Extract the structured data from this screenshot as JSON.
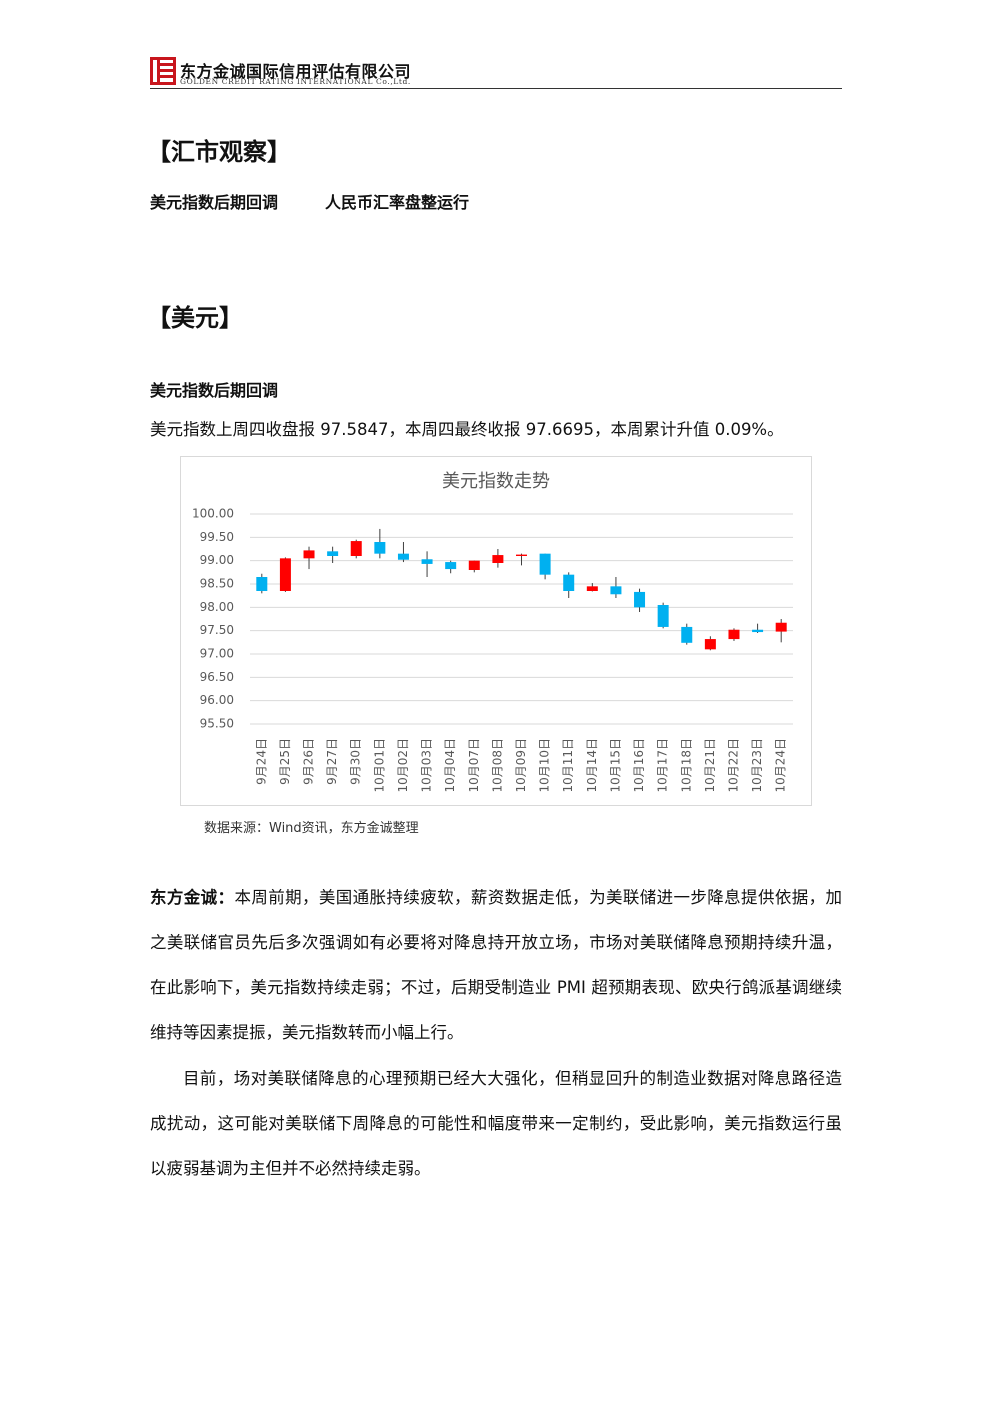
{
  "header": {
    "company": "东方金诚国际信用评估有限公司",
    "company_en": "GOLDEN CREDIT RATING INTERNATIONAL Co.,Ltd."
  },
  "section_title": "【汇市观察】",
  "headlines": [
    "美元指数后期回调",
    "人民币汇率盘整运行"
  ],
  "subsection_title": "【美元】",
  "subhead": "美元指数后期回调",
  "intro": "美元指数上周四收盘报 97.5847，本周四最终收报 97.6695，本周累计升值 0.09%。",
  "chart_data": {
    "type": "candlestick",
    "title": "美元指数走势",
    "categories": [
      "9月24日",
      "9月25日",
      "9月26日",
      "9月27日",
      "9月30日",
      "10月01日",
      "10月02日",
      "10月03日",
      "10月04日",
      "10月07日",
      "10月08日",
      "10月09日",
      "10月10日",
      "10月11日",
      "10月14日",
      "10月15日",
      "10月16日",
      "10月17日",
      "10月18日",
      "10月21日",
      "10月22日",
      "10月23日",
      "10月24日"
    ],
    "open": [
      98.65,
      98.35,
      99.05,
      99.2,
      99.1,
      99.4,
      99.15,
      99.03,
      98.97,
      98.8,
      98.95,
      99.1,
      99.15,
      98.7,
      98.35,
      98.45,
      98.33,
      98.05,
      97.58,
      97.1,
      97.32,
      97.52,
      97.48
    ],
    "high": [
      98.72,
      99.07,
      99.3,
      99.3,
      99.45,
      99.68,
      99.4,
      99.2,
      99.0,
      99.0,
      99.25,
      99.15,
      99.15,
      98.75,
      98.52,
      98.65,
      98.4,
      98.1,
      97.65,
      97.38,
      97.55,
      97.65,
      97.75
    ],
    "low": [
      98.3,
      98.33,
      98.82,
      98.95,
      99.05,
      99.05,
      98.97,
      98.65,
      98.73,
      98.75,
      98.85,
      98.9,
      98.6,
      98.2,
      98.34,
      98.2,
      97.9,
      97.55,
      97.2,
      97.08,
      97.28,
      97.45,
      97.25
    ],
    "close": [
      98.35,
      99.05,
      99.22,
      99.1,
      99.42,
      99.15,
      99.02,
      98.93,
      98.82,
      99.0,
      99.12,
      99.13,
      98.7,
      98.35,
      98.45,
      98.28,
      98.0,
      97.58,
      97.24,
      97.32,
      97.52,
      97.47,
      97.67
    ],
    "up_color": "#ff0000",
    "down_color": "#00b0f0",
    "ylim": [
      95.5,
      100
    ],
    "yticks": [
      {
        "value": 95.5,
        "label": "95.50"
      },
      {
        "value": 96,
        "label": "96.00"
      },
      {
        "value": 96.5,
        "label": "96.50"
      },
      {
        "value": 97,
        "label": "97.00"
      },
      {
        "value": 97.5,
        "label": "97.50"
      },
      {
        "value": 98,
        "label": "98.00"
      },
      {
        "value": 98.5,
        "label": "98.50"
      },
      {
        "value": 99,
        "label": "99.00"
      },
      {
        "value": 99.5,
        "label": "99.50"
      },
      {
        "value": 100,
        "label": "100.00"
      }
    ],
    "grid": true
  },
  "source": "数据来源：Wind资讯，东方金诚整理",
  "paragraphs": [
    {
      "lead": "东方金诚：",
      "text": "本周前期，美国通胀持续疲软，薪资数据走低，为美联储进一步降息提供依据，加之美联储官员先后多次强调如有必要将对降息持开放立场，市场对美联储降息预期持续升温，在此影响下，美元指数持续走弱；不过，后期受制造业 PMI 超预期表现、欧央行鸽派基调继续维持等因素提振，美元指数转而小幅上行。"
    },
    {
      "text": "目前，场对美联储降息的心理预期已经大大强化，但稍显回升的制造业数据对降息路径造成扰动，这可能对美联储下周降息的可能性和幅度带来一定制约，受此影响，美元指数运行虽以疲弱基调为主但并不必然持续走弱。"
    }
  ]
}
